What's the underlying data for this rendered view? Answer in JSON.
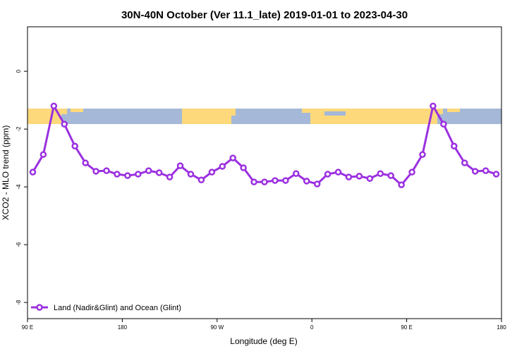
{
  "chart_data": {
    "type": "line",
    "title": "30N-40N October (Ver 11.1_late)   2019-01-01 to 2023-04-30",
    "x_label": "Longitude (deg E)",
    "y_label": "XCO2 - MLO trend (ppm)",
    "x": [
      95,
      105,
      115,
      125,
      135,
      145,
      155,
      165,
      175,
      185,
      195,
      205,
      215,
      225,
      235,
      245,
      255,
      265,
      275,
      285,
      295,
      305,
      315,
      325,
      335,
      345,
      355,
      365,
      375,
      385,
      395,
      405,
      415,
      425,
      435,
      445,
      455,
      465,
      475,
      485,
      495,
      505,
      515,
      525,
      535
    ],
    "series": [
      {
        "name": "Land (Nadir&Glint) and Ocean (Glint)",
        "color": "#9b30e0",
        "values": [
          -3.49,
          -2.88,
          -1.2,
          -1.83,
          -2.59,
          -3.17,
          -3.46,
          -3.44,
          -3.56,
          -3.61,
          -3.56,
          -3.44,
          -3.51,
          -3.66,
          -3.27,
          -3.56,
          -3.76,
          -3.49,
          -3.29,
          -3.0,
          -3.34,
          -3.83,
          -3.83,
          -3.78,
          -3.78,
          -3.54,
          -3.8,
          -3.9,
          -3.56,
          -3.49,
          -3.66,
          -3.63,
          -3.71,
          -3.54,
          -3.61,
          -3.93,
          -3.49,
          -2.88,
          -1.2,
          -1.83,
          -2.59,
          -3.17,
          -3.46,
          -3.44,
          -3.56
        ]
      }
    ],
    "xlim": [
      90,
      540
    ],
    "xticks": [
      {
        "value": 90,
        "label": "90 E"
      },
      {
        "value": 180,
        "label": "180"
      },
      {
        "value": 270,
        "label": "90 W"
      },
      {
        "value": 360,
        "label": "0"
      },
      {
        "value": 450,
        "label": "90 E"
      },
      {
        "value": 540,
        "label": "180"
      }
    ],
    "ylim": [
      -8.56,
      1.54
    ],
    "yticks": [
      0,
      -2,
      -4,
      -6,
      -8
    ],
    "legend": "bottomleft"
  }
}
